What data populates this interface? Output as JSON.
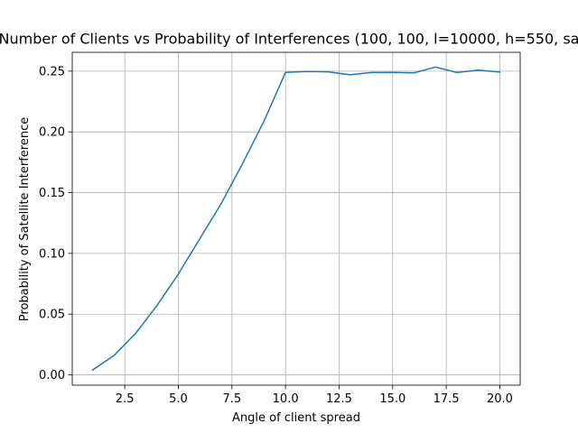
{
  "chart_data": {
    "type": "line",
    "title": "Number of Clients vs Probability of Interferences (100, 100, l=10000, h=550, sa",
    "xlabel": "Angle of client spread",
    "ylabel": "Probability of Satellite Interference",
    "xlim": [
      0.05,
      20.95
    ],
    "ylim": [
      -0.0085,
      0.2655
    ],
    "xticks": [
      "2.5",
      "5.0",
      "7.5",
      "10.0",
      "12.5",
      "15.0",
      "17.5",
      "20.0"
    ],
    "yticks": [
      "0.00",
      "0.05",
      "0.10",
      "0.15",
      "0.20",
      "0.25"
    ],
    "grid": true,
    "line_color": "#1f77b4",
    "series": [
      {
        "x": [
          1,
          2,
          3,
          4,
          5,
          6,
          7,
          8,
          9,
          10,
          11,
          12,
          13,
          14,
          15,
          16,
          17,
          18,
          19,
          20
        ],
        "values": [
          0.004,
          0.016,
          0.034,
          0.057,
          0.083,
          0.112,
          0.141,
          0.174,
          0.209,
          0.249,
          0.2497,
          0.2494,
          0.247,
          0.2489,
          0.249,
          0.2486,
          0.2534,
          0.2489,
          0.2508,
          0.2492
        ]
      }
    ]
  }
}
